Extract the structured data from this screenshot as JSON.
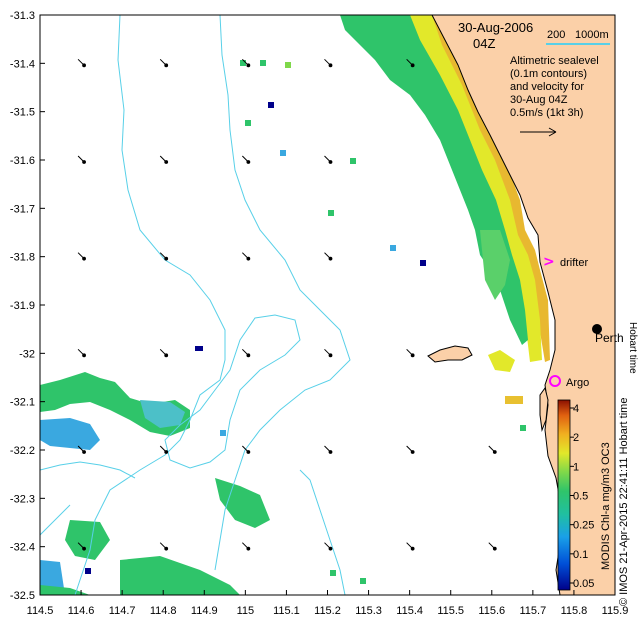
{
  "map": {
    "date_label": "30-Aug-2006",
    "time_label": "04Z",
    "scale_label_a": "200",
    "scale_label_b": "1000m",
    "legend_lines": [
      "Altimetric sealevel",
      "(0.1m contours)",
      "and velocity for",
      "30-Aug 04Z"
    ],
    "velocity_ref_label": "0.5m/s (1kt 3h)",
    "x_ticks": [
      "114.5",
      "114.6",
      "114.7",
      "114.8",
      "114.9",
      "115",
      "115.1",
      "115.2",
      "115.3",
      "115.4",
      "115.5",
      "115.6",
      "115.7",
      "115.8",
      "115.9"
    ],
    "y_ticks": [
      "-31.3",
      "-31.4",
      "-31.5",
      "-31.6",
      "-31.7",
      "-31.8",
      "-31.9",
      "-32",
      "-32.1",
      "-32.2",
      "-32.3",
      "-32.4",
      "-32.5"
    ],
    "x_range": [
      114.5,
      115.9
    ],
    "y_range": [
      -32.5,
      -31.3
    ],
    "places": {
      "drifter": "drifter",
      "perth": "Perth",
      "argo": "Argo",
      "hobart_time": "Hobart time"
    },
    "colorbar": {
      "labels": [
        "4",
        "2",
        "1",
        "0.5",
        "0.25",
        "0.1",
        "0.05"
      ],
      "title": "MODIS Chl-a mg/m3 OC3"
    },
    "credit": "© IMOS 21-Apr-2015 22:41:11 Hobart time",
    "colors": {
      "land": "#fbd0a8",
      "contour": "#58d0e8",
      "chl_high": "#e2e82a",
      "chl_mid": "#2fc46a",
      "chl_low": "#3aa8e0",
      "marker": "#ff00ff"
    }
  },
  "chart_data": {
    "type": "map",
    "x_range": [
      114.5,
      115.9
    ],
    "y_range": [
      -32.5,
      -31.3
    ],
    "xlabel": "",
    "ylabel": "",
    "vectors": [
      {
        "lon": 114.6,
        "lat": -31.4
      },
      {
        "lon": 114.8,
        "lat": -31.4
      },
      {
        "lon": 115.0,
        "lat": -31.4
      },
      {
        "lon": 115.2,
        "lat": -31.4
      },
      {
        "lon": 115.4,
        "lat": -31.4
      },
      {
        "lon": 114.6,
        "lat": -31.6
      },
      {
        "lon": 114.8,
        "lat": -31.6
      },
      {
        "lon": 115.0,
        "lat": -31.6
      },
      {
        "lon": 115.2,
        "lat": -31.6
      },
      {
        "lon": 114.6,
        "lat": -31.8
      },
      {
        "lon": 114.8,
        "lat": -31.8
      },
      {
        "lon": 115.0,
        "lat": -31.8
      },
      {
        "lon": 115.2,
        "lat": -31.8
      },
      {
        "lon": 114.6,
        "lat": -32.0
      },
      {
        "lon": 114.8,
        "lat": -32.0
      },
      {
        "lon": 115.0,
        "lat": -32.0
      },
      {
        "lon": 115.2,
        "lat": -32.0
      },
      {
        "lon": 115.4,
        "lat": -32.0
      },
      {
        "lon": 114.6,
        "lat": -32.2
      },
      {
        "lon": 114.8,
        "lat": -32.2
      },
      {
        "lon": 115.0,
        "lat": -32.2
      },
      {
        "lon": 115.2,
        "lat": -32.2
      },
      {
        "lon": 115.4,
        "lat": -32.2
      },
      {
        "lon": 115.6,
        "lat": -32.2
      },
      {
        "lon": 114.6,
        "lat": -32.4
      },
      {
        "lon": 114.8,
        "lat": -32.4
      },
      {
        "lon": 115.0,
        "lat": -32.4
      },
      {
        "lon": 115.2,
        "lat": -32.4
      },
      {
        "lon": 115.4,
        "lat": -32.4
      },
      {
        "lon": 115.6,
        "lat": -32.4
      }
    ]
  }
}
